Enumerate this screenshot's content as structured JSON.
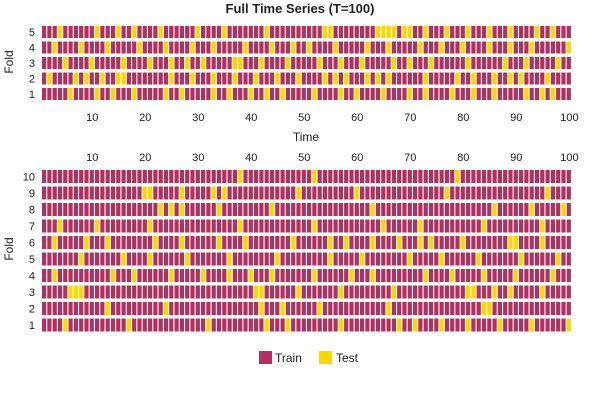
{
  "chart_data": {
    "title": "Full Time Series (T=100)",
    "type": "heatmap",
    "colors": {
      "train": "#b03060",
      "test": "#ffd700"
    },
    "legend": {
      "placement": "bottom-center",
      "entries": [
        {
          "name": "Train",
          "color": "#b03060"
        },
        {
          "name": "Test",
          "color": "#ffd700"
        }
      ]
    },
    "panels": [
      {
        "id": "top",
        "xlabel": "Time",
        "ylabel": "Fold",
        "xticks": [
          10,
          20,
          30,
          40,
          50,
          60,
          70,
          80,
          90,
          100
        ],
        "folds": [
          1,
          2,
          3,
          4,
          5
        ],
        "T": 100,
        "test_indices": {
          "1": [
            6,
            11,
            14,
            18,
            24,
            27,
            33,
            36,
            40,
            43,
            46,
            52,
            57,
            60,
            65,
            70,
            73,
            78,
            82,
            86,
            92,
            95,
            97
          ],
          "2": [
            2,
            7,
            9,
            12,
            15,
            16,
            25,
            29,
            33,
            37,
            41,
            45,
            49,
            54,
            56,
            58,
            62,
            64,
            66,
            73,
            79,
            82,
            86,
            89,
            91,
            96
          ],
          "3": [
            5,
            10,
            16,
            21,
            25,
            28,
            31,
            37,
            38,
            42,
            47,
            53,
            57,
            61,
            67,
            70,
            74,
            81,
            88,
            92,
            98
          ],
          "4": [
            3,
            8,
            13,
            19,
            24,
            29,
            33,
            39,
            44,
            48,
            51,
            56,
            62,
            66,
            72,
            76,
            80,
            85,
            89,
            93,
            100
          ],
          "5": [
            4,
            11,
            15,
            18,
            23,
            30,
            35,
            43,
            54,
            55,
            64,
            65,
            66,
            67,
            69,
            70,
            73,
            77,
            81,
            85,
            89,
            94,
            97
          ]
        }
      },
      {
        "id": "bottom",
        "xlabel": "",
        "ylabel": "Fold",
        "xticks": [
          10,
          20,
          30,
          40,
          50,
          60,
          70,
          80,
          90,
          100
        ],
        "folds": [
          1,
          2,
          3,
          4,
          5,
          6,
          7,
          8,
          9,
          10
        ],
        "T": 100,
        "test_indices": {
          "1": [
            5,
            17,
            32,
            43,
            47,
            57,
            68,
            71,
            76,
            81,
            87,
            93,
            100
          ],
          "2": [
            13,
            24,
            42,
            46,
            53,
            66,
            84,
            85
          ],
          "3": [
            6,
            7,
            8,
            41,
            42,
            49,
            57,
            67,
            81,
            82,
            86,
            89,
            95
          ],
          "4": [
            3,
            14,
            18,
            25,
            31,
            36,
            40,
            44,
            52,
            59,
            63,
            73,
            78,
            84,
            90,
            97
          ],
          "5": [
            8,
            16,
            21,
            28,
            36,
            45,
            55,
            61,
            70,
            76,
            83,
            91,
            98
          ],
          "6": [
            3,
            9,
            13,
            22,
            27,
            34,
            39,
            48,
            55,
            58,
            63,
            68,
            72,
            74,
            80,
            89,
            90,
            95
          ],
          "7": [
            4,
            11,
            21,
            38,
            52,
            65,
            72,
            84,
            95
          ],
          "8": [
            23,
            25,
            27,
            34,
            44,
            63,
            86,
            93,
            99
          ],
          "9": [
            20,
            21,
            27,
            33,
            35,
            49,
            60,
            77,
            96
          ],
          "10": [
            38,
            52,
            79
          ]
        }
      }
    ]
  }
}
